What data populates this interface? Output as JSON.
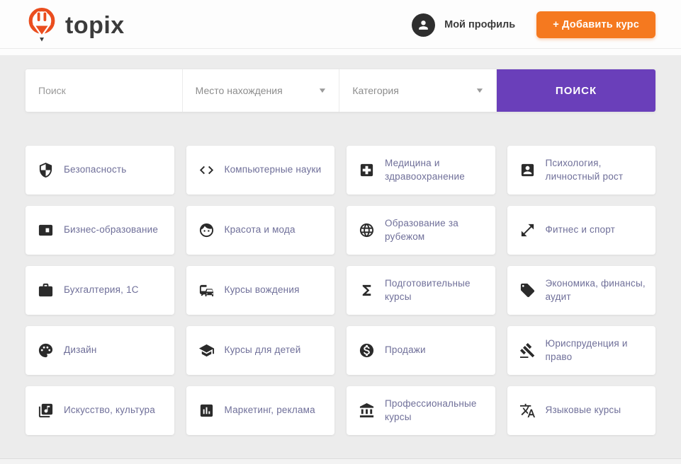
{
  "header": {
    "logo_text": "topix",
    "profile_label": "Мой профиль",
    "add_course_label": "+ Добавить курс"
  },
  "search": {
    "placeholder": "Поиск",
    "location_label": "Место нахождения",
    "category_label": "Категория",
    "button_label": "ПОИСК"
  },
  "categories": [
    {
      "label": "Безопасность",
      "icon": "shield-icon"
    },
    {
      "label": "Компьютерные науки",
      "icon": "code-icon"
    },
    {
      "label": "Медицина и здравоохранение",
      "icon": "medical-cross-icon"
    },
    {
      "label": "Психология, личностный рост",
      "icon": "person-card-icon"
    },
    {
      "label": "Бизнес-образование",
      "icon": "business-card-icon"
    },
    {
      "label": "Красота и мода",
      "icon": "face-icon"
    },
    {
      "label": "Образование за рубежом",
      "icon": "globe-icon"
    },
    {
      "label": "Фитнес и спорт",
      "icon": "fitness-arrows-icon"
    },
    {
      "label": "Бухгалтерия, 1С",
      "icon": "briefcase-icon"
    },
    {
      "label": "Курсы вождения",
      "icon": "car-icon"
    },
    {
      "label": "Подготовительные курсы",
      "icon": "sigma-icon"
    },
    {
      "label": "Экономика, финансы, аудит",
      "icon": "price-tag-icon"
    },
    {
      "label": "Дизайн",
      "icon": "palette-icon"
    },
    {
      "label": "Курсы для детей",
      "icon": "graduation-cap-icon"
    },
    {
      "label": "Продажи",
      "icon": "dollar-icon"
    },
    {
      "label": "Юриспруденция и право",
      "icon": "gavel-icon"
    },
    {
      "label": "Искусство, культура",
      "icon": "music-note-icon"
    },
    {
      "label": "Маркетинг, реклама",
      "icon": "bar-chart-icon"
    },
    {
      "label": "Профессиональные курсы",
      "icon": "bank-icon"
    },
    {
      "label": "Языковые курсы",
      "icon": "translate-icon"
    }
  ],
  "colors": {
    "accent_purple": "#6A3FBA",
    "accent_orange": "#F5791F",
    "logo_orange": "#EA4D1E",
    "card_text": "#6F6F99",
    "icon_dark": "#2B2B2B",
    "page_background": "#ECECEC"
  }
}
